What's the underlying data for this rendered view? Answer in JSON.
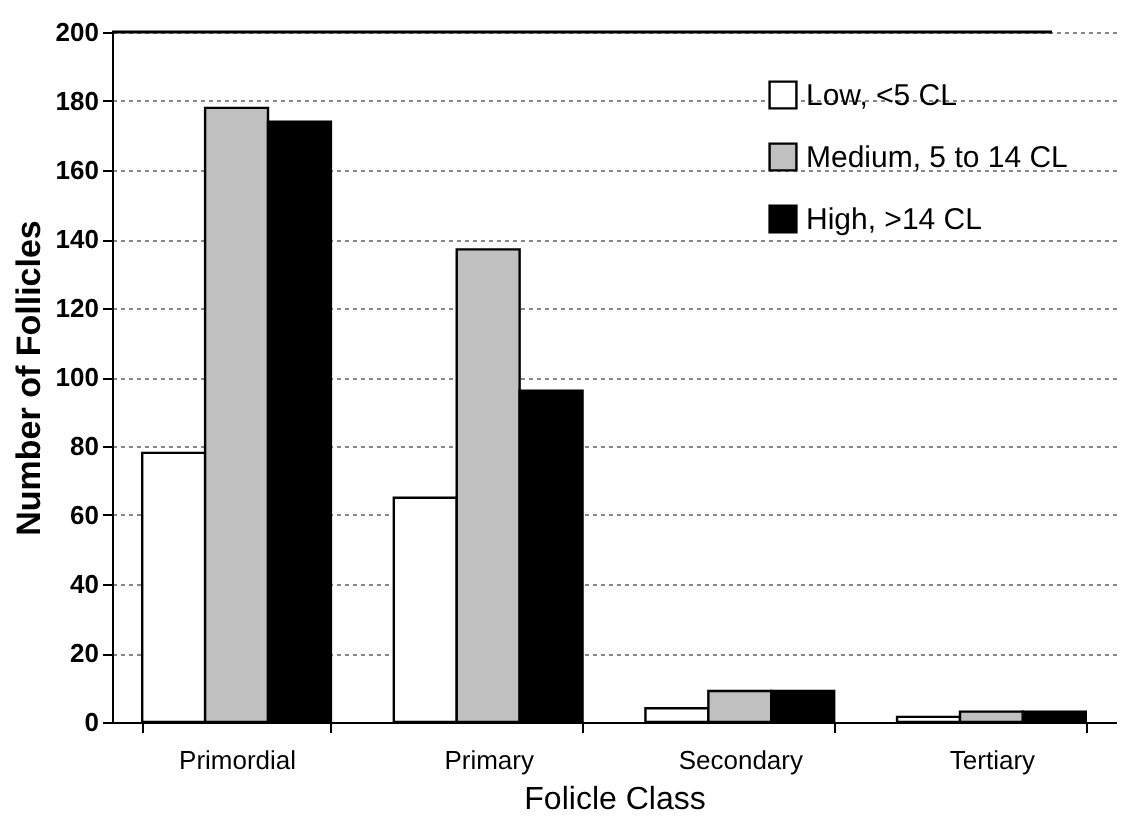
{
  "chart_data": {
    "type": "bar",
    "xlabel": "Folicle Class",
    "ylabel": "Number of Follicles",
    "categories": [
      "Primordial",
      "Primary",
      "Secondary",
      "Tertiary"
    ],
    "series": [
      {
        "name": "Low, <5 CL",
        "color": "#ffffff",
        "values": [
          78,
          65,
          4,
          1.5
        ]
      },
      {
        "name": "Medium, 5 to 14 CL",
        "color": "#c0c0c0",
        "values": [
          178,
          137,
          9,
          3
        ]
      },
      {
        "name": "High, >14 CL",
        "color": "#000000",
        "values": [
          174,
          96,
          9,
          3
        ]
      }
    ],
    "ylim": [
      0,
      200
    ],
    "yticks": [
      0,
      20,
      40,
      60,
      80,
      100,
      120,
      140,
      160,
      180,
      200
    ],
    "grid": "y",
    "legend": "top right"
  }
}
